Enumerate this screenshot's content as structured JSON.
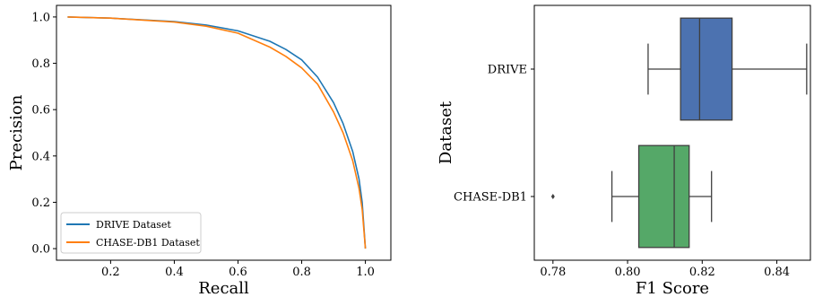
{
  "chart_data": [
    {
      "type": "line",
      "xlabel": "Recall",
      "ylabel": "Precision",
      "xlim": [
        0.03,
        1.08
      ],
      "ylim": [
        -0.05,
        1.05
      ],
      "xticks": [
        0.2,
        0.4,
        0.6,
        0.8,
        1.0
      ],
      "xtick_labels": [
        "0.2",
        "0.4",
        "0.6",
        "0.8",
        "1.0"
      ],
      "yticks": [
        0.0,
        0.2,
        0.4,
        0.6,
        0.8,
        1.0
      ],
      "ytick_labels": [
        "0.0",
        "0.2",
        "0.4",
        "0.6",
        "0.8",
        "1.0"
      ],
      "grid": false,
      "legend_position": "bottom-left",
      "series": [
        {
          "name": "DRIVE Dataset",
          "color": "#1f77b4",
          "x": [
            0.065,
            0.2,
            0.4,
            0.5,
            0.6,
            0.7,
            0.75,
            0.8,
            0.85,
            0.9,
            0.93,
            0.96,
            0.98,
            0.99,
            1.0
          ],
          "y": [
            1.0,
            0.995,
            0.98,
            0.965,
            0.94,
            0.895,
            0.86,
            0.815,
            0.74,
            0.63,
            0.54,
            0.42,
            0.3,
            0.2,
            0.0
          ]
        },
        {
          "name": "CHASE-DB1 Dataset",
          "color": "#ff7f0e",
          "x": [
            0.065,
            0.2,
            0.4,
            0.5,
            0.6,
            0.7,
            0.75,
            0.8,
            0.85,
            0.9,
            0.93,
            0.96,
            0.98,
            0.99,
            1.0
          ],
          "y": [
            1.0,
            0.995,
            0.978,
            0.96,
            0.93,
            0.87,
            0.83,
            0.78,
            0.71,
            0.59,
            0.5,
            0.38,
            0.26,
            0.17,
            0.0
          ]
        }
      ]
    },
    {
      "type": "box",
      "xlabel": "F1 Score",
      "ylabel": "Dataset",
      "xlim": [
        0.775,
        0.849
      ],
      "xticks": [
        0.78,
        0.8,
        0.82,
        0.84
      ],
      "xtick_labels": [
        "0.78",
        "0.80",
        "0.82",
        "0.84"
      ],
      "categories": [
        "DRIVE",
        "CHASE-DB1"
      ],
      "grid": false,
      "boxes": [
        {
          "name": "DRIVE",
          "color": "#4c72b0",
          "whisker_low": 0.8055,
          "q1": 0.8142,
          "median": 0.8193,
          "q3": 0.828,
          "whisker_high": 0.848,
          "outliers": []
        },
        {
          "name": "CHASE-DB1",
          "color": "#55a868",
          "whisker_low": 0.7958,
          "q1": 0.803,
          "median": 0.8125,
          "q3": 0.8165,
          "whisker_high": 0.8225,
          "outliers": [
            0.78
          ]
        }
      ]
    }
  ]
}
